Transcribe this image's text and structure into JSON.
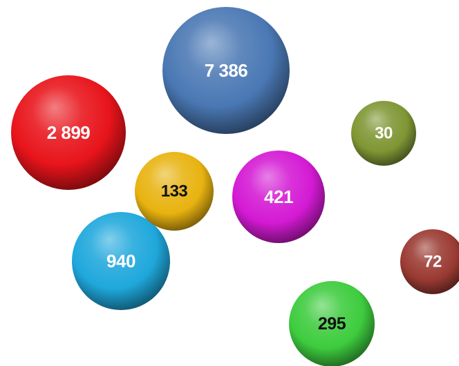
{
  "chart_data": {
    "type": "bubble",
    "values": [
      "7 386",
      "2 899",
      "940",
      "421",
      "295",
      "133",
      "72",
      "30"
    ],
    "series": [
      {
        "label": "7 386",
        "color": "#4a78b4",
        "label_color": "#ffffff"
      },
      {
        "label": "2 899",
        "color": "#e8141b",
        "label_color": "#ffffff"
      },
      {
        "label": "940",
        "color": "#1fa8dc",
        "label_color": "#ffffff"
      },
      {
        "label": "421",
        "color": "#d41ad4",
        "label_color": "#ffffff"
      },
      {
        "label": "295",
        "color": "#3ecc3e",
        "label_color": "#111111"
      },
      {
        "label": "133",
        "color": "#e8b310",
        "label_color": "#111111"
      },
      {
        "label": "72",
        "color": "#9a3a32",
        "label_color": "#ffffff"
      },
      {
        "label": "30",
        "color": "#7f9634",
        "label_color": "#ffffff"
      }
    ]
  }
}
